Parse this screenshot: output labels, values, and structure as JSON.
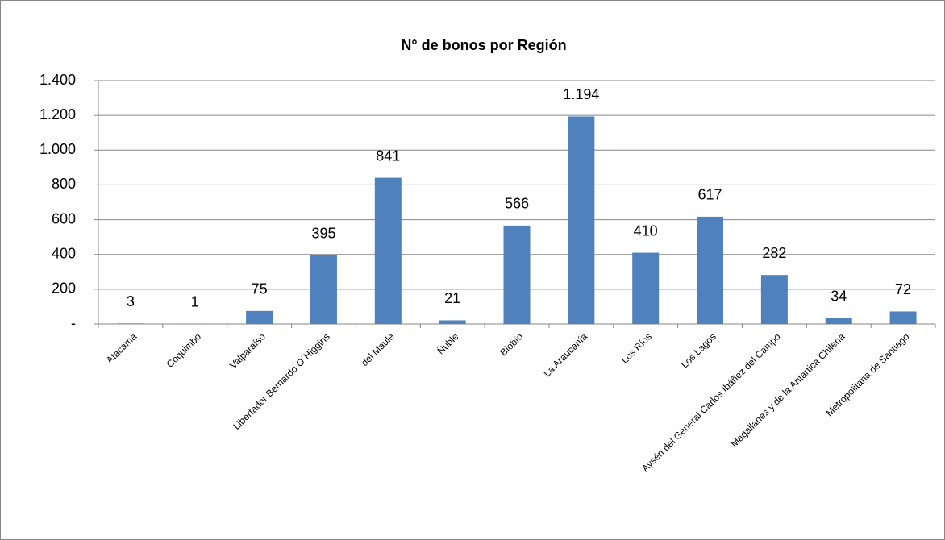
{
  "chart_data": {
    "type": "bar",
    "title": "N° de bonos por Región",
    "categories": [
      "Atacama",
      "Coquimbo",
      "Valparaíso",
      "Libertador Bernardo O´Higgins",
      "del Maule",
      "Ñuble",
      "Biobío",
      "La Araucanía",
      "Los Ríos",
      "Los Lagos",
      "Aysén del General Carlos Ibáñez del Campo",
      "Magallanes y de la Antártica Chilena",
      "Metropolitana de Santiago"
    ],
    "values": [
      3,
      1,
      75,
      395,
      841,
      21,
      566,
      1194,
      410,
      617,
      282,
      34,
      72
    ],
    "value_labels": [
      "3",
      "1",
      "75",
      "395",
      "841",
      "21",
      "566",
      "1.194",
      "410",
      "617",
      "282",
      "34",
      "72"
    ],
    "color": "#4f81bd",
    "ylim": [
      0,
      1400
    ],
    "yticks": [
      {
        "value": 0,
        "label": "-"
      },
      200,
      400,
      600,
      800,
      {
        "value": 1000,
        "label": "1.000"
      },
      {
        "value": 1200,
        "label": "1.200"
      },
      {
        "value": 1400,
        "label": "1.400"
      }
    ],
    "grid": true
  }
}
